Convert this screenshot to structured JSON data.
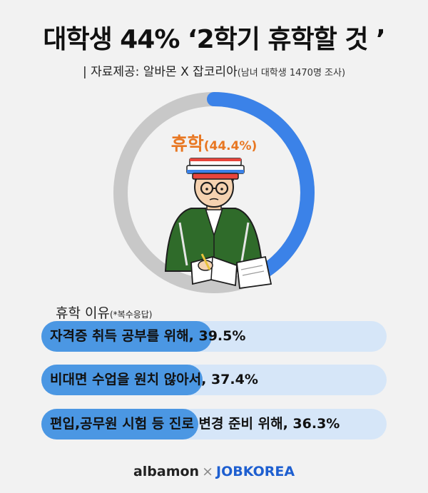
{
  "title": "대학생 44% ‘2학기 휴학할 것 ’",
  "source": {
    "main": "| 자료제공: 알바몬 X 잡코리아",
    "note": "(남녀 대학생 1470명 조사)"
  },
  "donut": {
    "label": "휴학",
    "value_text": "(44.4%)"
  },
  "reasons": {
    "title": "휴학 이유",
    "title_note": "(*복수응답)"
  },
  "footer": {
    "albamon": "albamon",
    "x": "×",
    "jobkorea": "JOBKOREA"
  },
  "colors": {
    "accent_blue": "#3b82e8",
    "ring_gray": "#c8c8c8",
    "label_orange": "#e87722",
    "bar_fill": "#4b97e3",
    "bar_track": "#d6e6f8"
  },
  "chart_data": [
    {
      "type": "pie",
      "title": "",
      "categories": [
        "휴학"
      ],
      "values": [
        44.4
      ],
      "unit": "%"
    },
    {
      "type": "bar",
      "title": "휴학 이유",
      "categories": [
        "자격증 취득 공부를 위해, 39.5%",
        "비대면 수업을 원치 않아서, 37.4%",
        "편입,공무원 시험 등 진로 변경 준비 위해, 36.3%"
      ],
      "values": [
        39.5,
        37.4,
        36.3
      ],
      "unit": "%"
    }
  ]
}
